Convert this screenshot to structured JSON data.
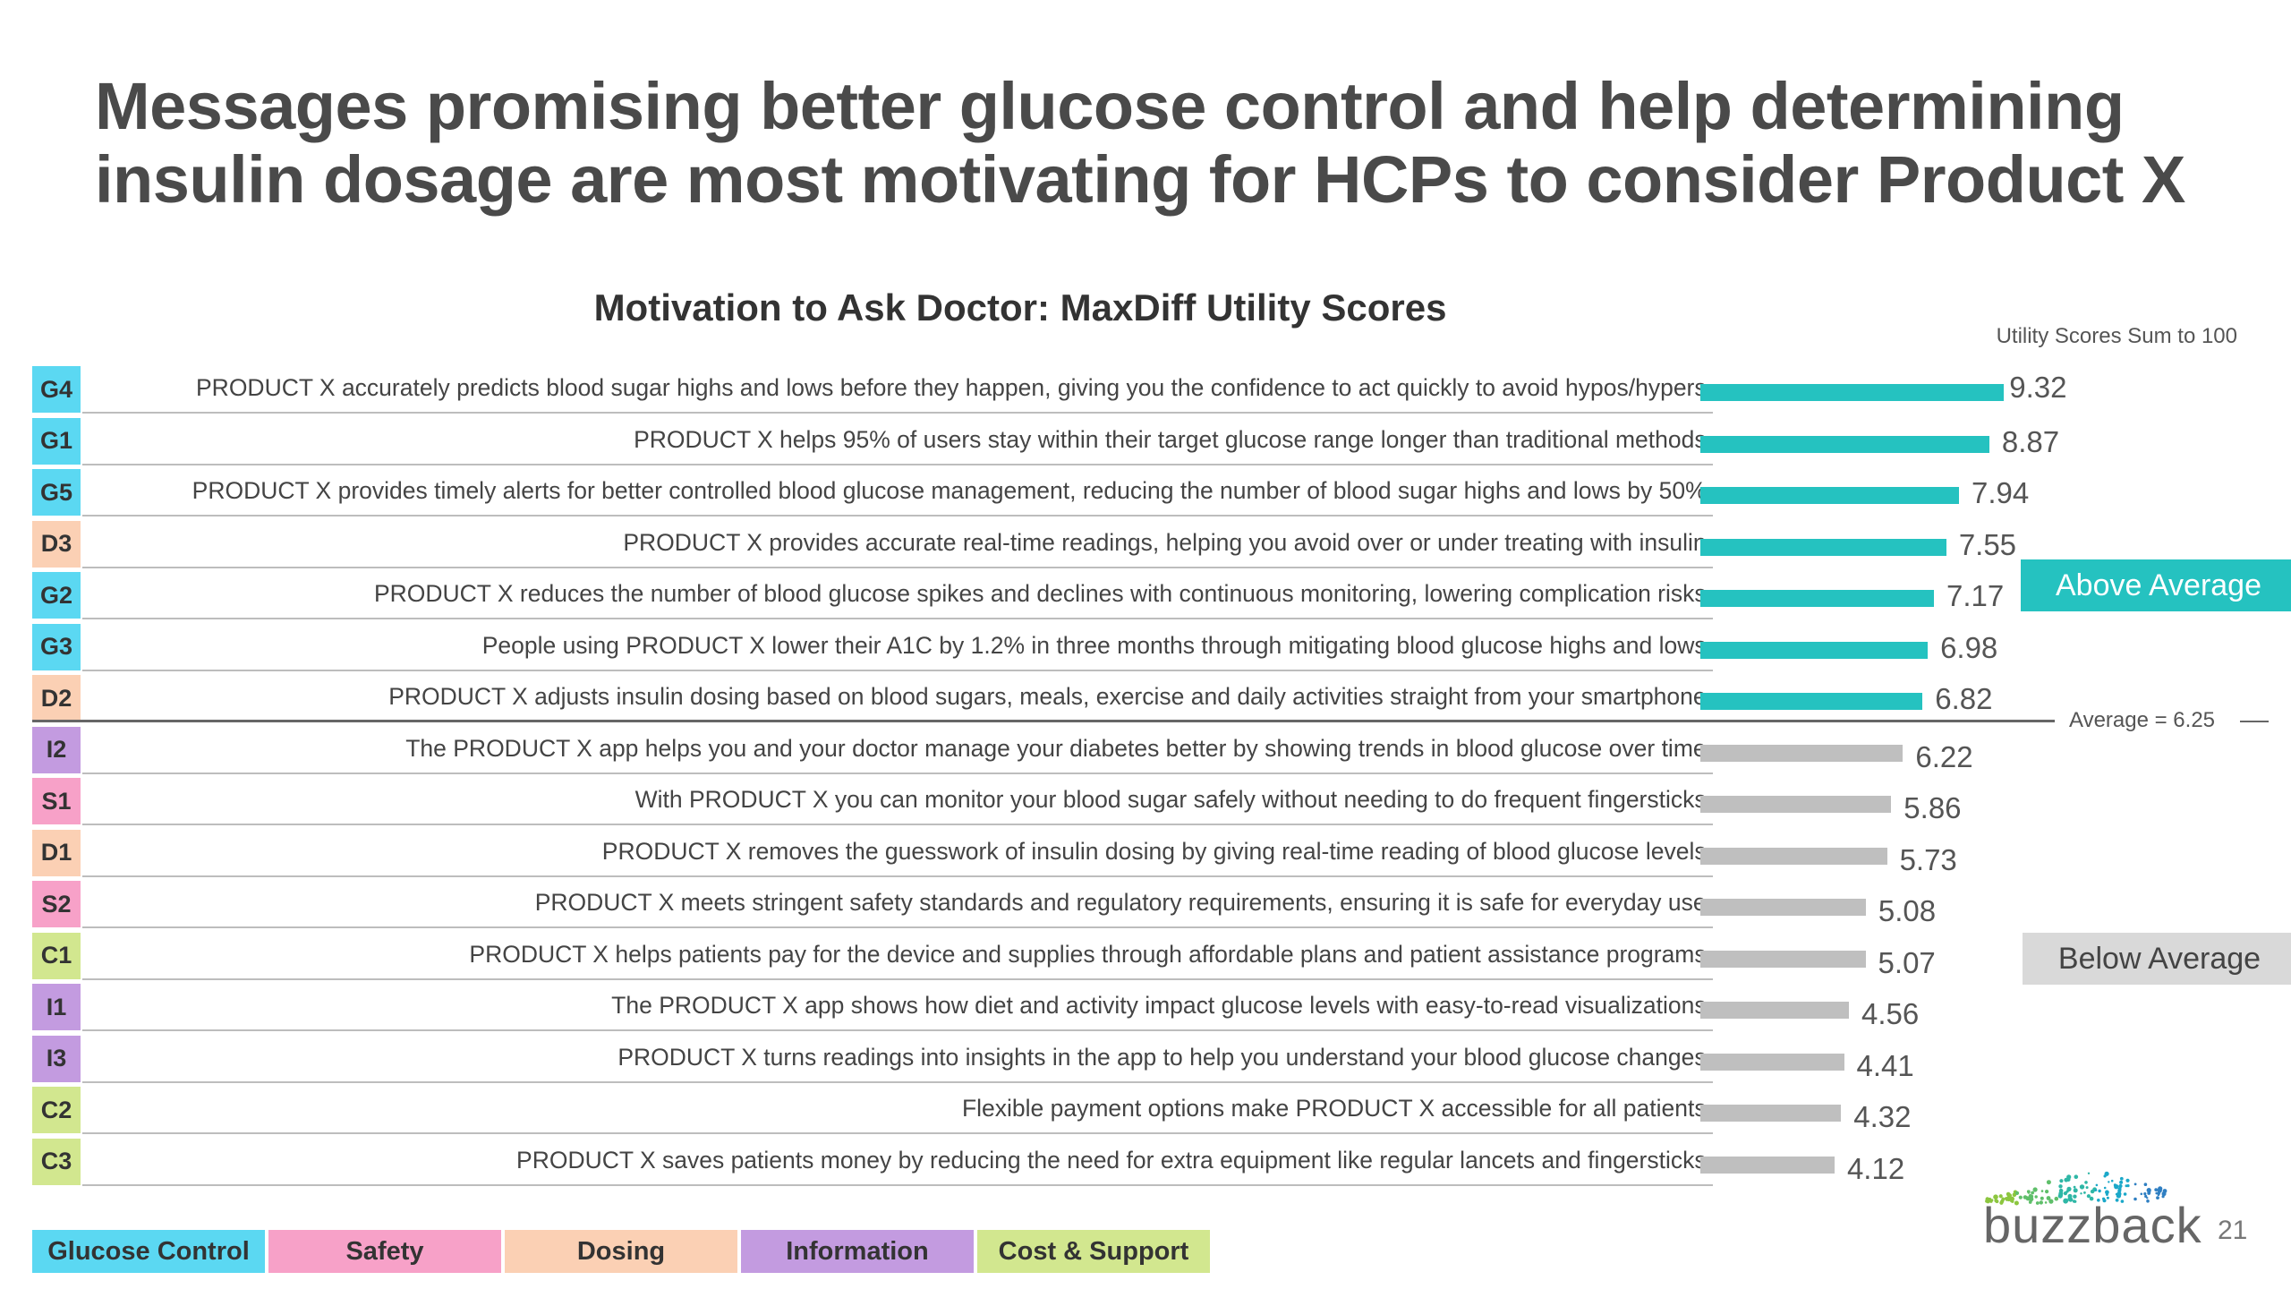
{
  "title": "Messages promising better glucose control and help determining insulin dosage are most motivating for HCPs to consider Product X",
  "chart_data": {
    "type": "bar",
    "orientation": "horizontal",
    "title": "Motivation to Ask Doctor: MaxDiff Utility Scores",
    "note": "Utility Scores Sum to 100",
    "average": 6.25,
    "average_label": "Average = 6.25",
    "xlim": [
      0,
      10
    ],
    "categories": [
      "G4",
      "G1",
      "G5",
      "D3",
      "G2",
      "G3",
      "D2",
      "I2",
      "S1",
      "D1",
      "S2",
      "C1",
      "I1",
      "I3",
      "C2",
      "C3"
    ],
    "values": [
      9.32,
      8.87,
      7.94,
      7.55,
      7.17,
      6.98,
      6.82,
      6.22,
      5.86,
      5.73,
      5.08,
      5.07,
      4.56,
      4.41,
      4.32,
      4.12
    ],
    "value_labels": [
      "9.32",
      "8.87",
      "7.94",
      "7.55",
      "7.17",
      "6.98",
      "6.82",
      "6.22",
      "5.86",
      "5.73",
      "5.08",
      "5.07",
      "4.56",
      "4.41",
      "4.32",
      "4.12"
    ],
    "groups": [
      "glucose",
      "glucose",
      "glucose",
      "dosing",
      "glucose",
      "glucose",
      "dosing",
      "information",
      "safety",
      "dosing",
      "safety",
      "cost",
      "information",
      "information",
      "cost",
      "cost"
    ],
    "statements": [
      "PRODUCT X accurately predicts blood sugar highs and lows before they happen, giving you the confidence to act quickly to avoid hypos/hypers.",
      "PRODUCT X helps 95% of users stay within their target glucose range longer than traditional methods.",
      "PRODUCT X provides timely alerts for better controlled blood glucose management, reducing the number of blood sugar highs and lows by 50%.",
      "PRODUCT X provides accurate real-time readings, helping you avoid over or under treating with insulin.",
      "PRODUCT X reduces the number of blood glucose spikes and declines with continuous monitoring, lowering complication risks.",
      "People using PRODUCT X lower their A1C by 1.2% in three months through mitigating blood glucose highs and lows.",
      "PRODUCT X adjusts insulin dosing based on blood sugars, meals, exercise and daily activities straight from your smartphone.",
      "The PRODUCT X app helps you and your doctor manage your diabetes better by showing trends in blood glucose over time.",
      "With PRODUCT X you can monitor your blood sugar safely without needing to do frequent fingersticks.",
      "PRODUCT X removes the guesswork of insulin dosing by giving real-time reading of blood glucose levels.",
      "PRODUCT X meets stringent safety standards and regulatory requirements, ensuring it is safe for everyday use.",
      "PRODUCT X helps patients pay for the device and supplies through affordable plans and patient assistance programs.",
      "The PRODUCT X app shows how diet and activity impact glucose levels with easy-to-read visualizations.",
      "PRODUCT X turns readings into insights in the app to help you understand your blood glucose changes.",
      "Flexible payment options make PRODUCT X accessible for all patients.",
      "PRODUCT X saves patients money by reducing the need for extra equipment like regular lancets and fingersticks."
    ],
    "above_label": "Above Average",
    "below_label": "Below Average",
    "grid": false
  },
  "legend": [
    {
      "key": "glucose",
      "label": "Glucose Control",
      "color": "#5bd8f2"
    },
    {
      "key": "safety",
      "label": "Safety",
      "color": "#f7a1c8"
    },
    {
      "key": "dosing",
      "label": "Dosing",
      "color": "#fbd0b4"
    },
    {
      "key": "information",
      "label": "Information",
      "color": "#c39be0"
    },
    {
      "key": "cost",
      "label": "Cost & Support",
      "color": "#d2e78f"
    }
  ],
  "colors": {
    "above_bar": "#25c2c0",
    "below_bar": "#bfbfbf"
  },
  "logo_text": "buzzback",
  "page_number": "21"
}
